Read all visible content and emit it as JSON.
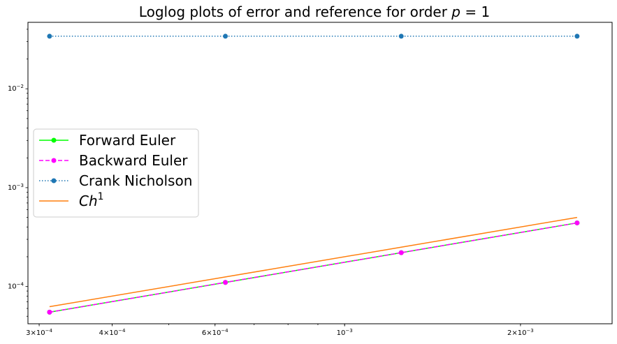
{
  "chart_data": {
    "type": "line",
    "title": "Loglog plots of error and reference for order p = 1",
    "title_parts": {
      "text": "Loglog plots of error and reference for order ",
      "var": "p",
      "eq": " = 1"
    },
    "xscale": "log",
    "yscale": "log",
    "xlim": [
      0.000287,
      0.00287
    ],
    "ylim": [
      4.2e-05,
      0.047
    ],
    "grid": false,
    "legend_position": "center-left",
    "x": [
      0.0003125,
      0.000625,
      0.00125,
      0.0025
    ],
    "x_ticks": [
      {
        "value": 0.0003,
        "mant": "3",
        "base": "×10",
        "exp": "−4"
      },
      {
        "value": 0.0004,
        "mant": "4",
        "base": "×10",
        "exp": "−4"
      },
      {
        "value": 0.0006,
        "mant": "6",
        "base": "×10",
        "exp": "−4"
      },
      {
        "value": 0.001,
        "mant": "",
        "base": "10",
        "exp": "−3"
      },
      {
        "value": 0.002,
        "mant": "2",
        "base": "×10",
        "exp": "−3"
      }
    ],
    "y_ticks": [
      {
        "value": 0.0001,
        "base": "10",
        "exp": "−4"
      },
      {
        "value": 0.001,
        "base": "10",
        "exp": "−3"
      },
      {
        "value": 0.01,
        "base": "10",
        "exp": "−2"
      }
    ],
    "series": [
      {
        "name": "Forward Euler",
        "color": "#00ff00",
        "linestyle": "solid",
        "marker": true,
        "values": [
          5.5e-05,
          0.00011,
          0.00022,
          0.00044
        ]
      },
      {
        "name": "Backward Euler",
        "color": "#ff00ff",
        "linestyle": "dashed",
        "marker": true,
        "values": [
          5.5e-05,
          0.00011,
          0.00022,
          0.00044
        ]
      },
      {
        "name": "Crank Nicholson",
        "color": "#1f77b4",
        "linestyle": "dotted",
        "marker": true,
        "values": [
          0.034,
          0.034,
          0.034,
          0.034
        ]
      },
      {
        "name": "Ch",
        "name_sup": "1",
        "color": "#ff7f0e",
        "linestyle": "solid",
        "marker": false,
        "values": [
          6.25e-05,
          0.000125,
          0.00025,
          0.0005
        ]
      }
    ]
  }
}
